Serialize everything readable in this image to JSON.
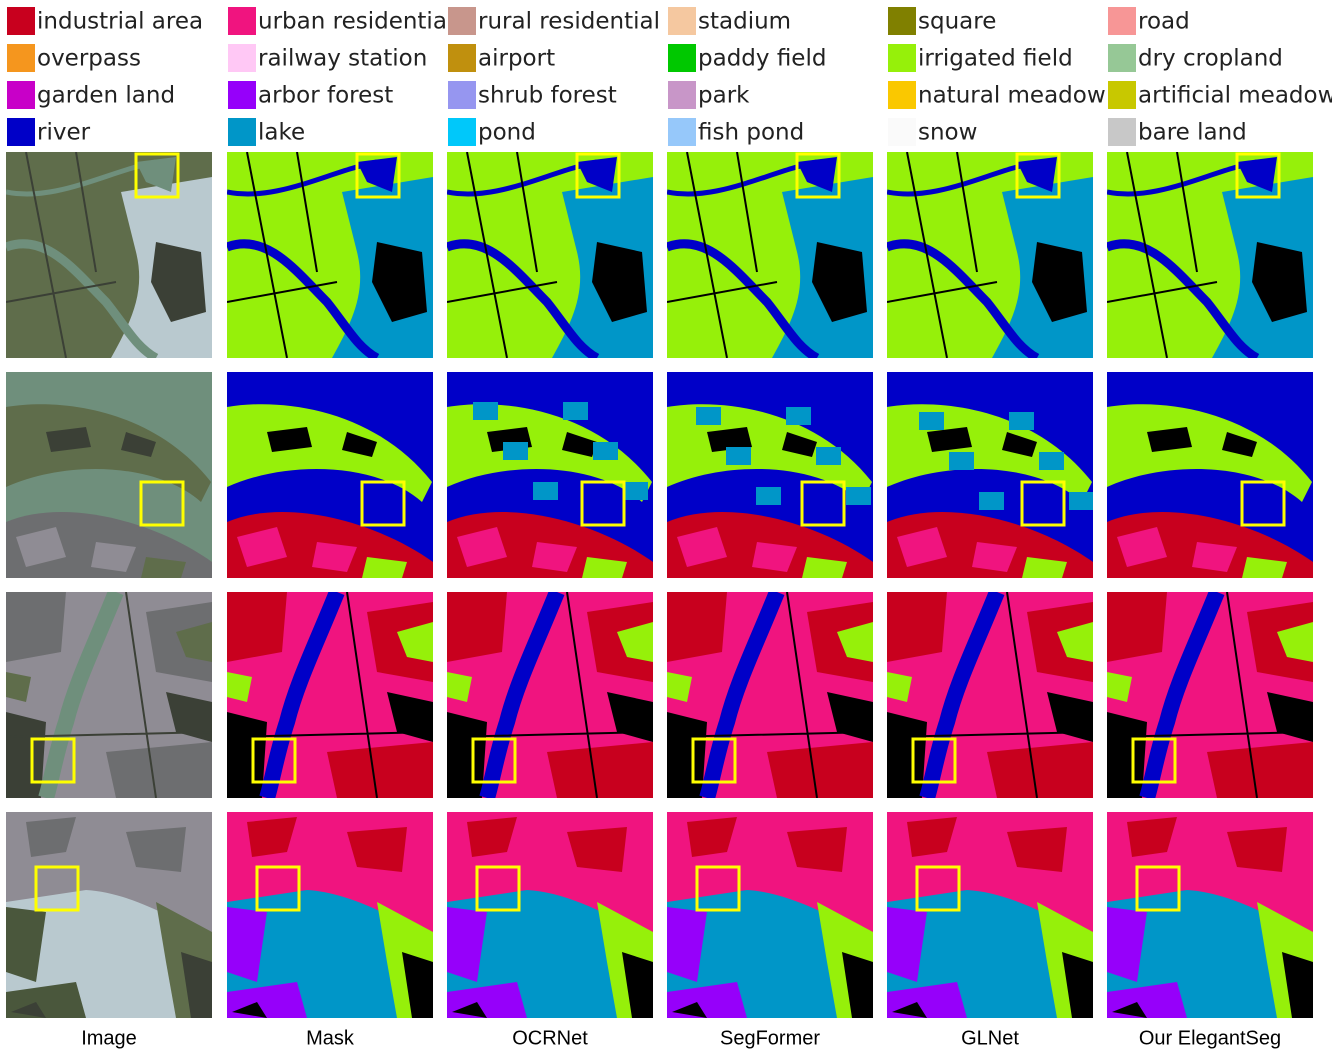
{
  "legend": [
    {
      "label": "industrial area",
      "color": "#c8001e"
    },
    {
      "label": "urban residential",
      "color": "#f0147f"
    },
    {
      "label": "rural residential",
      "color": "#c8968c"
    },
    {
      "label": "stadium",
      "color": "#f5c8a0"
    },
    {
      "label": "square",
      "color": "#808000"
    },
    {
      "label": "road",
      "color": "#f79696"
    },
    {
      "label": "overpass",
      "color": "#f5961e"
    },
    {
      "label": "railway station",
      "color": "#ffc8f5"
    },
    {
      "label": "airport",
      "color": "#c0900e"
    },
    {
      "label": "paddy field",
      "color": "#00c800"
    },
    {
      "label": "irrigated field",
      "color": "#96f00a"
    },
    {
      "label": "dry cropland",
      "color": "#96c896"
    },
    {
      "label": "garden land",
      "color": "#c800c8"
    },
    {
      "label": "arbor forest",
      "color": "#9600fa"
    },
    {
      "label": "shrub forest",
      "color": "#9696f0"
    },
    {
      "label": "park",
      "color": "#c896c8"
    },
    {
      "label": "natural meadow",
      "color": "#fac800"
    },
    {
      "label": "artificial meadow",
      "color": "#c8c800"
    },
    {
      "label": "river",
      "color": "#0000c8"
    },
    {
      "label": "lake",
      "color": "#0096c8"
    },
    {
      "label": "pond",
      "color": "#00c8fa"
    },
    {
      "label": "fish pond",
      "color": "#96c8fa"
    },
    {
      "label": "snow",
      "color": "#fafafa"
    },
    {
      "label": "bare land",
      "color": "#c8c8c8"
    }
  ],
  "columns": [
    "Image",
    "Mask",
    "OCRNet",
    "SegFormer",
    "GLNet",
    "Our ElegantSeg"
  ]
}
